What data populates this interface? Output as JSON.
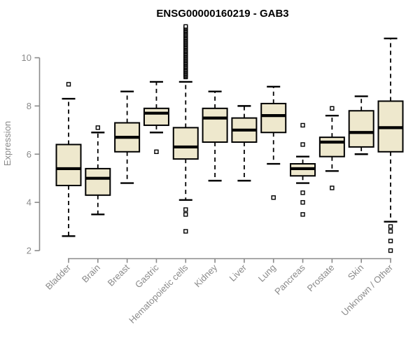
{
  "chart_data": {
    "type": "boxplot",
    "title": "ENSG00000160219 - GAB3",
    "xlabel": "",
    "ylabel": "Expression",
    "y_ticks": [
      2,
      4,
      6,
      8,
      10
    ],
    "ylim": [
      2,
      11.5
    ],
    "grid": false,
    "legend": false,
    "categories": [
      "Bladder",
      "Brain",
      "Breast",
      "Gastric",
      "Hematopoietic cells",
      "Kidney",
      "Liver",
      "Lung",
      "Pancreas",
      "Prostate",
      "Skin",
      "Unknown / Other"
    ],
    "boxes": [
      {
        "category": "Bladder",
        "whisker_low": 2.6,
        "q1": 4.7,
        "median": 5.4,
        "q3": 6.4,
        "whisker_high": 8.3,
        "outliers": [
          8.9
        ]
      },
      {
        "category": "Brain",
        "whisker_low": 3.5,
        "q1": 4.3,
        "median": 5.0,
        "q3": 5.4,
        "whisker_high": 6.9,
        "outliers": [
          7.1
        ]
      },
      {
        "category": "Breast",
        "whisker_low": 4.8,
        "q1": 6.1,
        "median": 6.7,
        "q3": 7.3,
        "whisker_high": 8.6,
        "outliers": []
      },
      {
        "category": "Gastric",
        "whisker_low": 6.9,
        "q1": 7.2,
        "median": 7.7,
        "q3": 7.9,
        "whisker_high": 9.0,
        "outliers": [
          6.1
        ]
      },
      {
        "category": "Hematopoietic cells",
        "whisker_low": 4.1,
        "q1": 5.8,
        "median": 6.3,
        "q3": 7.1,
        "whisker_high": 9.0,
        "outliers": [
          3.7,
          3.5,
          2.8
        ],
        "outlier_run": {
          "min": 9.2,
          "max": 11.3,
          "count": 45
        }
      },
      {
        "category": "Kidney",
        "whisker_low": 4.9,
        "q1": 6.5,
        "median": 7.5,
        "q3": 7.9,
        "whisker_high": 8.6,
        "outliers": []
      },
      {
        "category": "Liver",
        "whisker_low": 4.9,
        "q1": 6.5,
        "median": 7.0,
        "q3": 7.5,
        "whisker_high": 8.0,
        "outliers": []
      },
      {
        "category": "Lung",
        "whisker_low": 5.6,
        "q1": 6.9,
        "median": 7.6,
        "q3": 8.1,
        "whisker_high": 8.8,
        "outliers": [
          4.2
        ]
      },
      {
        "category": "Pancreas",
        "whisker_low": 4.8,
        "q1": 5.1,
        "median": 5.4,
        "q3": 5.6,
        "whisker_high": 5.9,
        "outliers": [
          7.2,
          6.4,
          4.4,
          4.0,
          3.5
        ]
      },
      {
        "category": "Prostate",
        "whisker_low": 5.3,
        "q1": 5.9,
        "median": 6.5,
        "q3": 6.7,
        "whisker_high": 7.6,
        "outliers": [
          7.9,
          4.6
        ]
      },
      {
        "category": "Skin",
        "whisker_low": 6.0,
        "q1": 6.3,
        "median": 6.9,
        "q3": 7.8,
        "whisker_high": 8.4,
        "outliers": []
      },
      {
        "category": "Unknown / Other",
        "whisker_low": 3.2,
        "q1": 6.1,
        "median": 7.1,
        "q3": 8.2,
        "whisker_high": 10.8,
        "outliers": [
          3.0,
          2.8,
          2.4,
          2.0
        ]
      }
    ],
    "colors": {
      "box_fill": "#EEE8CD",
      "box_border": "#000000",
      "median": "#000000",
      "whisker": "#000000",
      "outlier_fill": "#FFFFFF",
      "axis": "#8A8A8A",
      "tick_label": "#8A8A8A",
      "title_color": "#000000",
      "background": "#FFFFFF"
    }
  }
}
